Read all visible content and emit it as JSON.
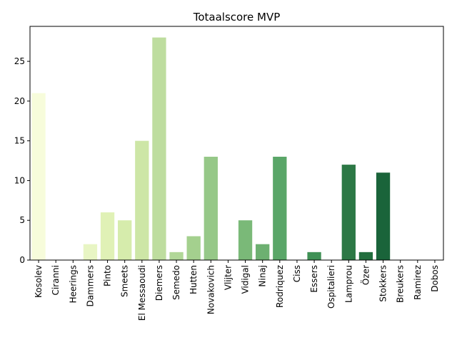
{
  "chart_data": {
    "type": "bar",
    "title": "Totaalscore MVP",
    "xlabel": "",
    "ylabel": "",
    "categories": [
      "Kosolev",
      "Ciranni",
      "Heerings",
      "Dammers",
      "Pinto",
      "Smeets",
      "El Messaoudi",
      "Diemers",
      "Semedo",
      "Hutten",
      "Novakovich",
      "Vlijter",
      "Vidigal",
      "Ninaj",
      "Rodriquez",
      "Ciss",
      "Essers",
      "Ospitalieri",
      "Lamprou",
      "Özer",
      "Stokkers",
      "Breukers",
      "Ramirez",
      "Dobos"
    ],
    "values": [
      21,
      0,
      0,
      2,
      6,
      5,
      15,
      28,
      1,
      3,
      13,
      0,
      5,
      2,
      13,
      0,
      1,
      0,
      12,
      1,
      11,
      0,
      0,
      0
    ],
    "colors": [
      "#f7fcdb",
      "#f4fad5",
      "#eef8cf",
      "#e8f5c4",
      "#e0f1b6",
      "#d6ecac",
      "#cde6a6",
      "#bedd9f",
      "#b1d798",
      "#a4d08e",
      "#96c888",
      "#89c080",
      "#7ab978",
      "#6db071",
      "#5aa668",
      "#4b9d5f",
      "#3f9155",
      "#35844b",
      "#2c7845",
      "#226e3e",
      "#1a643a",
      "#145a35",
      "#104f30",
      "#0d472c"
    ],
    "ylim": [
      0,
      29.4
    ],
    "yticks": [
      0,
      5,
      10,
      15,
      20,
      25
    ],
    "grid": false,
    "legend": "none"
  }
}
